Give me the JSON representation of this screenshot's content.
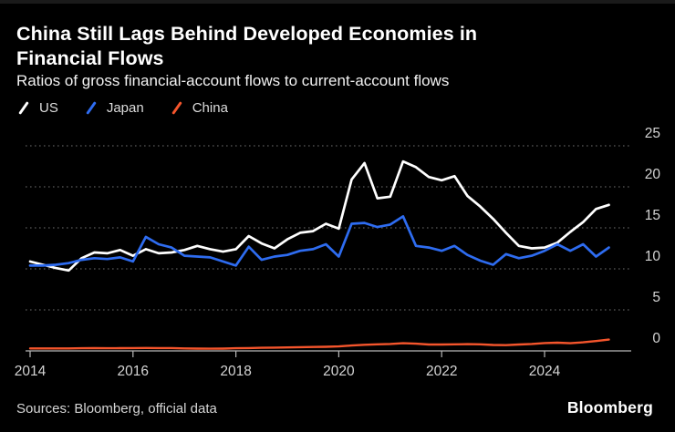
{
  "title": "China Still Lags Behind Developed Economies in Financial Flows",
  "subtitle": "Ratios of gross financial-account flows to current-account flows",
  "source_note": "Sources: Bloomberg, official data",
  "brand_logo": "Bloomberg",
  "colors": {
    "background": "#000000",
    "title_text": "#ffffff",
    "subtitle_text": "#f2f2f2",
    "axis_label": "#d4d4d4",
    "gridline": "#4a4a4a",
    "axis_line": "#b8b8b8",
    "us_line": "#ffffff",
    "japan_line": "#2e6cf0",
    "china_line": "#f4552c"
  },
  "chart_data": {
    "type": "line",
    "title": "China Still Lags Behind Developed Economies in Financial Flows",
    "subtitle": "Ratios of gross financial-account flows to current-account flows",
    "frequency": "quarterly",
    "x_start": 2014.0,
    "x_step": 0.25,
    "x_range_label": "2014Q1 - 2025Q2",
    "xticks": [
      2014,
      2016,
      2018,
      2020,
      2022,
      2024
    ],
    "yticks": [
      0,
      5,
      10,
      15,
      20,
      25
    ],
    "ylim": [
      0,
      27
    ],
    "grid": "horizontal-dotted",
    "legend_position": "top-left",
    "series": [
      {
        "name": "US",
        "color": "#ffffff",
        "values": [
          10.9,
          10.5,
          10.1,
          9.8,
          11.3,
          12.0,
          11.9,
          12.3,
          11.6,
          12.4,
          11.9,
          12.0,
          12.3,
          12.8,
          12.4,
          12.1,
          12.4,
          14.0,
          13.1,
          12.5,
          13.6,
          14.4,
          14.6,
          15.5,
          14.9,
          20.9,
          22.9,
          18.6,
          18.8,
          23.1,
          22.4,
          21.2,
          20.8,
          21.3,
          18.9,
          17.6,
          16.1,
          14.4,
          12.8,
          12.5,
          12.6,
          13.2,
          14.5,
          15.7,
          17.3,
          17.8
        ]
      },
      {
        "name": "Japan",
        "color": "#2e6cf0",
        "values": [
          10.4,
          10.4,
          10.5,
          10.7,
          11.1,
          11.3,
          11.2,
          11.4,
          10.9,
          13.9,
          13.0,
          12.6,
          11.6,
          11.5,
          11.4,
          10.9,
          10.4,
          12.7,
          11.1,
          11.5,
          11.7,
          12.2,
          12.4,
          13.0,
          11.5,
          15.5,
          15.6,
          15.1,
          15.4,
          16.4,
          12.8,
          12.6,
          12.2,
          12.8,
          11.7,
          11.0,
          10.5,
          11.8,
          11.3,
          11.6,
          12.2,
          13.0,
          12.2,
          13.0,
          11.5,
          12.6
        ]
      },
      {
        "name": "China",
        "color": "#f4552c",
        "values": [
          0.3,
          0.3,
          0.3,
          0.3,
          0.32,
          0.33,
          0.32,
          0.33,
          0.35,
          0.36,
          0.35,
          0.34,
          0.3,
          0.28,
          0.27,
          0.28,
          0.32,
          0.35,
          0.38,
          0.4,
          0.42,
          0.45,
          0.48,
          0.5,
          0.55,
          0.65,
          0.75,
          0.8,
          0.85,
          0.93,
          0.88,
          0.78,
          0.78,
          0.8,
          0.82,
          0.8,
          0.72,
          0.7,
          0.78,
          0.85,
          0.95,
          1.0,
          0.93,
          1.05,
          1.2,
          1.38
        ]
      }
    ]
  }
}
